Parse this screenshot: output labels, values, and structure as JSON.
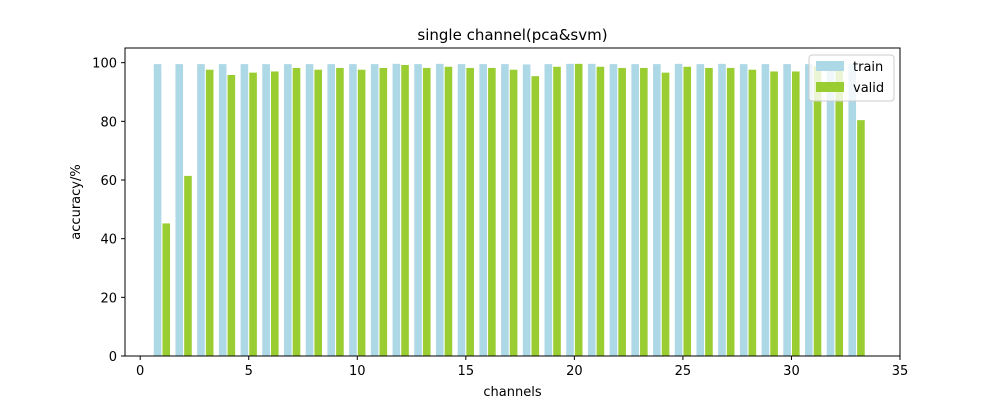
{
  "chart_data": {
    "type": "bar",
    "title": "single channel(pca&svm)",
    "xlabel": "channels",
    "ylabel": "accuracy/%",
    "xlim": [
      -0.7,
      35.0
    ],
    "ylim": [
      0,
      105
    ],
    "xticks": [
      0,
      5,
      10,
      15,
      20,
      25,
      30,
      35
    ],
    "yticks": [
      0,
      20,
      40,
      60,
      80,
      100
    ],
    "grid": false,
    "legend_position": "top-right",
    "x": [
      1,
      2,
      3,
      4,
      5,
      6,
      7,
      8,
      9,
      10,
      11,
      12,
      13,
      14,
      15,
      16,
      17,
      18,
      19,
      20,
      21,
      22,
      23,
      24,
      25,
      26,
      27,
      28,
      29,
      30,
      31,
      32,
      33
    ],
    "series": [
      {
        "name": "train",
        "color": "#add8e6",
        "values": [
          99.5,
          99.5,
          99.5,
          99.5,
          99.5,
          99.5,
          99.5,
          99.5,
          99.5,
          99.5,
          99.5,
          99.6,
          99.5,
          99.6,
          99.5,
          99.5,
          99.5,
          99.4,
          99.5,
          99.6,
          99.6,
          99.5,
          99.5,
          99.5,
          99.6,
          99.5,
          99.6,
          99.5,
          99.5,
          99.5,
          99.5,
          99.5,
          99.5
        ]
      },
      {
        "name": "valid",
        "color": "#9acd32",
        "values": [
          45.2,
          61.4,
          97.6,
          95.8,
          96.6,
          97.0,
          98.2,
          97.6,
          98.2,
          97.6,
          98.2,
          99.2,
          98.2,
          98.6,
          98.2,
          98.2,
          97.6,
          95.4,
          98.6,
          99.6,
          98.6,
          98.2,
          98.2,
          96.6,
          98.6,
          98.2,
          98.2,
          97.6,
          97.0,
          97.0,
          98.8,
          98.8,
          80.4
        ]
      }
    ]
  }
}
